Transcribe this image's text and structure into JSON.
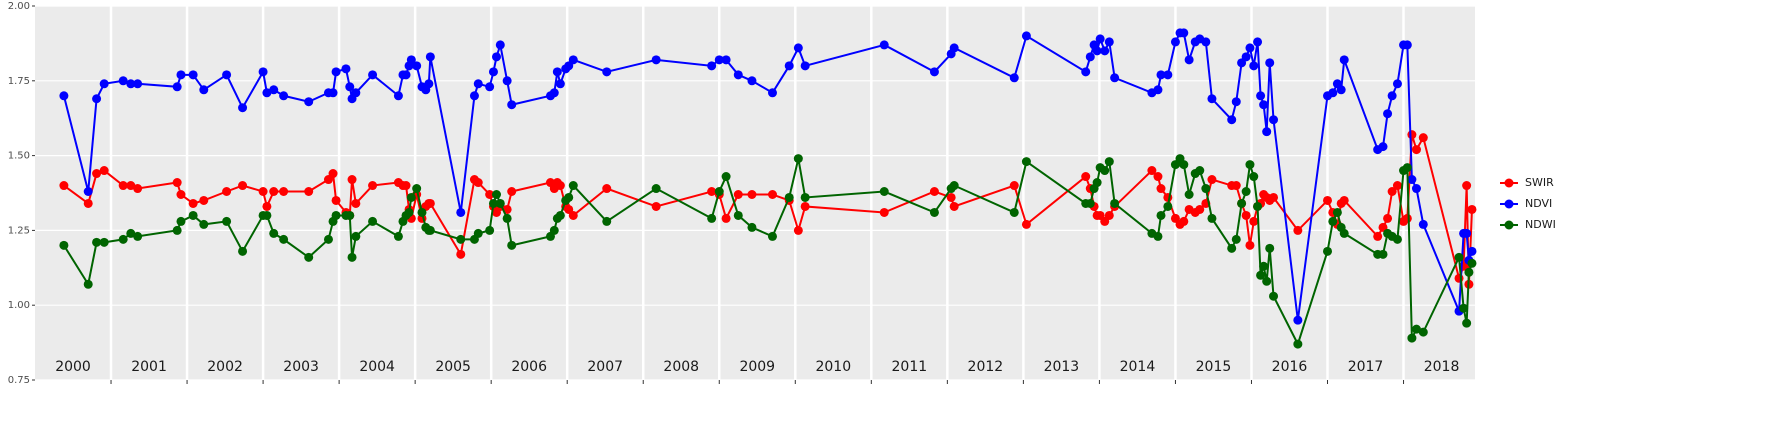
{
  "chart_data": {
    "type": "line",
    "x": [
      2000.38,
      2000.7,
      2000.81,
      2000.91,
      2001.16,
      2001.26,
      2001.35,
      2001.87,
      2001.92,
      2002.08,
      2002.22,
      2002.52,
      2002.73,
      2003.0,
      2003.05,
      2003.14,
      2003.27,
      2003.6,
      2003.86,
      2003.92,
      2003.96,
      2004.09,
      2004.14,
      2004.17,
      2004.22,
      2004.44,
      2004.78,
      2004.84,
      2004.88,
      2004.92,
      2004.95,
      2005.02,
      2005.09,
      2005.14,
      2005.18,
      2005.2,
      2005.6,
      2005.78,
      2005.83,
      2005.98,
      2006.03,
      2006.07,
      2006.12,
      2006.21,
      2006.27,
      2006.78,
      2006.83,
      2006.87,
      2006.91,
      2006.98,
      2007.02,
      2007.08,
      2007.52,
      2008.17,
      2008.9,
      2009.0,
      2009.09,
      2009.25,
      2009.43,
      2009.7,
      2009.92,
      2010.04,
      2010.13,
      2011.17,
      2011.83,
      2012.05,
      2012.09,
      2012.88,
      2013.04,
      2013.82,
      2013.88,
      2013.93,
      2013.97,
      2014.01,
      2014.07,
      2014.13,
      2014.2,
      2014.69,
      2014.77,
      2014.81,
      2014.9,
      2015.0,
      2015.06,
      2015.11,
      2015.18,
      2015.26,
      2015.32,
      2015.4,
      2015.48,
      2015.74,
      2015.8,
      2015.87,
      2015.93,
      2015.98,
      2016.03,
      2016.08,
      2016.12,
      2016.16,
      2016.2,
      2016.24,
      2016.29,
      2016.61,
      2017.0,
      2017.07,
      2017.13,
      2017.18,
      2017.22,
      2017.66,
      2017.73,
      2017.79,
      2017.85,
      2017.92,
      2018.0,
      2018.05,
      2018.11,
      2018.17,
      2018.26,
      2018.73,
      2018.79,
      2018.83,
      2018.86,
      2018.9
    ],
    "series": [
      {
        "name": "SWIR",
        "color": "#ff0000",
        "values": [
          1.4,
          1.34,
          1.44,
          1.45,
          1.4,
          1.4,
          1.39,
          1.41,
          1.37,
          1.34,
          1.35,
          1.38,
          1.4,
          1.38,
          1.33,
          1.38,
          1.38,
          1.38,
          1.42,
          1.44,
          1.35,
          1.31,
          1.3,
          1.42,
          1.34,
          1.4,
          1.41,
          1.4,
          1.4,
          1.32,
          1.29,
          1.37,
          1.29,
          1.33,
          1.34,
          1.34,
          1.17,
          1.42,
          1.41,
          1.37,
          1.33,
          1.31,
          1.33,
          1.32,
          1.38,
          1.41,
          1.39,
          1.41,
          1.4,
          1.33,
          1.32,
          1.3,
          1.39,
          1.33,
          1.38,
          1.37,
          1.29,
          1.37,
          1.37,
          1.37,
          1.35,
          1.25,
          1.33,
          1.31,
          1.38,
          1.36,
          1.33,
          1.4,
          1.27,
          1.43,
          1.39,
          1.33,
          1.3,
          1.3,
          1.28,
          1.3,
          1.33,
          1.45,
          1.43,
          1.39,
          1.36,
          1.29,
          1.27,
          1.28,
          1.32,
          1.31,
          1.32,
          1.34,
          1.42,
          1.4,
          1.4,
          1.34,
          1.3,
          1.2,
          1.28,
          1.33,
          1.34,
          1.37,
          1.36,
          1.35,
          1.36,
          1.25,
          1.35,
          1.31,
          1.27,
          1.34,
          1.35,
          1.23,
          1.26,
          1.29,
          1.38,
          1.4,
          1.28,
          1.29,
          1.57,
          1.52,
          1.56,
          1.09,
          1.13,
          1.4,
          1.07,
          1.32
        ]
      },
      {
        "name": "NDVI",
        "color": "#0000ff",
        "values": [
          1.7,
          1.38,
          1.69,
          1.74,
          1.75,
          1.74,
          1.74,
          1.73,
          1.77,
          1.77,
          1.72,
          1.77,
          1.66,
          1.78,
          1.71,
          1.72,
          1.7,
          1.68,
          1.71,
          1.71,
          1.78,
          1.79,
          1.73,
          1.69,
          1.71,
          1.77,
          1.7,
          1.77,
          1.77,
          1.8,
          1.82,
          1.8,
          1.73,
          1.72,
          1.74,
          1.83,
          1.31,
          1.7,
          1.74,
          1.73,
          1.78,
          1.83,
          1.87,
          1.75,
          1.67,
          1.7,
          1.71,
          1.78,
          1.74,
          1.79,
          1.8,
          1.82,
          1.78,
          1.82,
          1.8,
          1.82,
          1.82,
          1.77,
          1.75,
          1.71,
          1.8,
          1.86,
          1.8,
          1.87,
          1.78,
          1.84,
          1.86,
          1.76,
          1.9,
          1.78,
          1.83,
          1.87,
          1.85,
          1.89,
          1.85,
          1.88,
          1.76,
          1.71,
          1.72,
          1.77,
          1.77,
          1.88,
          1.91,
          1.91,
          1.82,
          1.88,
          1.89,
          1.88,
          1.69,
          1.62,
          1.68,
          1.81,
          1.83,
          1.86,
          1.8,
          1.88,
          1.7,
          1.67,
          1.58,
          1.81,
          1.62,
          0.95,
          1.7,
          1.71,
          1.74,
          1.72,
          1.82,
          1.52,
          1.53,
          1.64,
          1.7,
          1.74,
          1.87,
          1.87,
          1.42,
          1.39,
          1.27,
          0.98,
          1.24,
          1.24,
          1.15,
          1.18
        ]
      },
      {
        "name": "NDWI",
        "color": "#006400",
        "values": [
          1.2,
          1.07,
          1.21,
          1.21,
          1.22,
          1.24,
          1.23,
          1.25,
          1.28,
          1.3,
          1.27,
          1.28,
          1.18,
          1.3,
          1.3,
          1.24,
          1.22,
          1.16,
          1.22,
          1.28,
          1.3,
          1.3,
          1.3,
          1.16,
          1.23,
          1.28,
          1.23,
          1.28,
          1.3,
          1.31,
          1.36,
          1.39,
          1.31,
          1.26,
          1.25,
          1.25,
          1.22,
          1.22,
          1.24,
          1.25,
          1.34,
          1.37,
          1.34,
          1.29,
          1.2,
          1.23,
          1.25,
          1.29,
          1.3,
          1.35,
          1.36,
          1.4,
          1.28,
          1.39,
          1.29,
          1.38,
          1.43,
          1.3,
          1.26,
          1.23,
          1.36,
          1.49,
          1.36,
          1.38,
          1.31,
          1.39,
          1.4,
          1.31,
          1.48,
          1.34,
          1.34,
          1.39,
          1.41,
          1.46,
          1.45,
          1.48,
          1.34,
          1.24,
          1.23,
          1.3,
          1.33,
          1.47,
          1.49,
          1.47,
          1.37,
          1.44,
          1.45,
          1.39,
          1.29,
          1.19,
          1.22,
          1.34,
          1.38,
          1.47,
          1.43,
          1.33,
          1.1,
          1.13,
          1.08,
          1.19,
          1.03,
          0.87,
          1.18,
          1.28,
          1.31,
          1.26,
          1.24,
          1.17,
          1.17,
          1.24,
          1.23,
          1.22,
          1.45,
          1.46,
          0.89,
          0.92,
          0.91,
          1.16,
          0.99,
          0.94,
          1.11,
          1.14
        ]
      }
    ],
    "xlim": [
      2000.0,
      2018.94
    ],
    "xticks": [
      2001,
      2002,
      2003,
      2004,
      2005,
      2006,
      2007,
      2008,
      2009,
      2010,
      2011,
      2012,
      2013,
      2014,
      2015,
      2016,
      2017,
      2018
    ],
    "ylim": [
      0.75,
      2.0
    ],
    "yticks": [
      {
        "value": 0.75,
        "label": "0.75"
      },
      {
        "value": 1,
        "label": "1.00"
      },
      {
        "value": 1.25,
        "label": "1.25"
      },
      {
        "value": 1.5,
        "label": "1.50"
      },
      {
        "value": 1.75,
        "label": "1.75"
      },
      {
        "value": 2,
        "label": "2.00"
      }
    ],
    "annotations": [
      {
        "text": "2000",
        "x": 2000.5
      },
      {
        "text": "2001",
        "x": 2001.5
      },
      {
        "text": "2002",
        "x": 2002.5
      },
      {
        "text": "2003",
        "x": 2003.5
      },
      {
        "text": "2004",
        "x": 2004.5
      },
      {
        "text": "2005",
        "x": 2005.5
      },
      {
        "text": "2006",
        "x": 2006.5
      },
      {
        "text": "2007",
        "x": 2007.5
      },
      {
        "text": "2008",
        "x": 2008.5
      },
      {
        "text": "2009",
        "x": 2009.5
      },
      {
        "text": "2010",
        "x": 2010.5
      },
      {
        "text": "2011",
        "x": 2011.5
      },
      {
        "text": "2012",
        "x": 2012.5
      },
      {
        "text": "2013",
        "x": 2013.5
      },
      {
        "text": "2014",
        "x": 2014.5
      },
      {
        "text": "2015",
        "x": 2015.5
      },
      {
        "text": "2016",
        "x": 2016.5
      },
      {
        "text": "2017",
        "x": 2017.5
      },
      {
        "text": "2018",
        "x": 2018.5
      }
    ],
    "grid": true,
    "legend": "right"
  }
}
